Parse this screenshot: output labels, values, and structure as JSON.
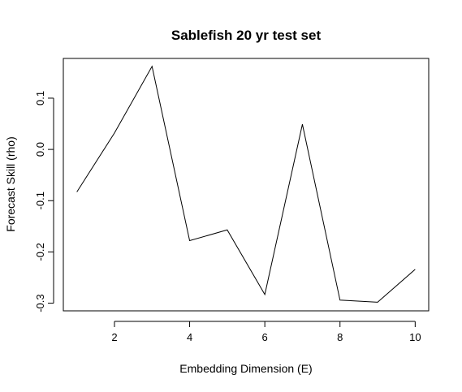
{
  "chart_data": {
    "type": "line",
    "title": "Sablefish 20 yr test set",
    "xlabel": "Embedding Dimension (E)",
    "ylabel": "Forecast Skill (rho)",
    "x": [
      1,
      2,
      3,
      4,
      5,
      6,
      7,
      8,
      9,
      10
    ],
    "series": [
      {
        "values": [
          -0.083,
          0.032,
          0.162,
          -0.178,
          -0.157,
          -0.283,
          0.049,
          -0.294,
          -0.298,
          -0.234
        ]
      }
    ],
    "xlim": [
      0.64,
      10.36
    ],
    "ylim": [
      -0.3149,
      0.1775
    ],
    "xticks": [
      2,
      4,
      6,
      8,
      10
    ],
    "yticks": [
      -0.3,
      -0.2,
      -0.1,
      0.0,
      0.1
    ],
    "xtick_labels": [
      "2",
      "4",
      "6",
      "8",
      "10"
    ],
    "ytick_labels": [
      "-0.3",
      "-0.2",
      "-0.1",
      "0.0",
      "0.1"
    ],
    "grid": false,
    "line_color": "#000000"
  }
}
